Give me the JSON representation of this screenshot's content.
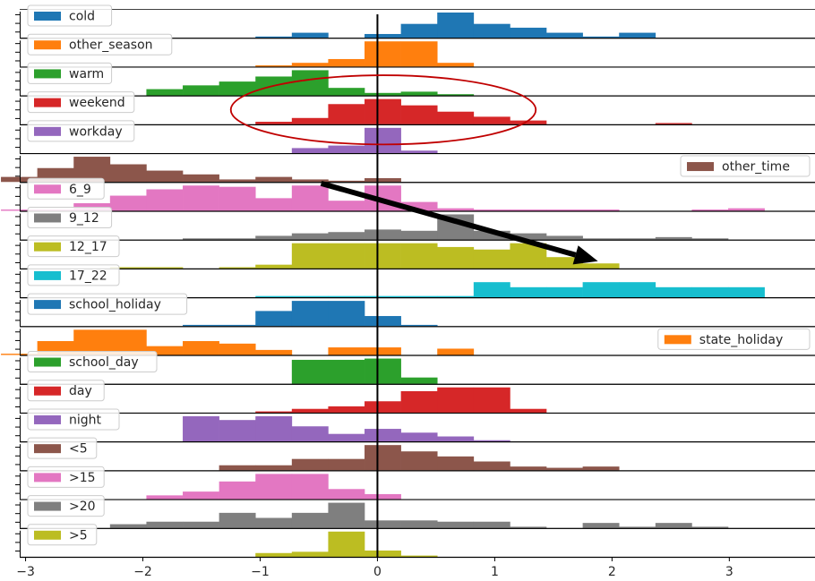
{
  "chart_data": {
    "type": "bar",
    "layout": "stacked-histogram-panels",
    "xlim": [
      -3.05,
      3.7
    ],
    "x_ticks": [
      {
        "value": -3,
        "label": "−3"
      },
      {
        "value": -2,
        "label": "−2"
      },
      {
        "value": -1,
        "label": "−1"
      },
      {
        "value": 0,
        "label": "0"
      },
      {
        "value": 1,
        "label": "1"
      },
      {
        "value": 2,
        "label": "2"
      },
      {
        "value": 3,
        "label": "3"
      }
    ],
    "reference_line_x": 0,
    "bin_edges": [
      -3.21,
      -2.9,
      -2.59,
      -2.28,
      -1.97,
      -1.66,
      -1.35,
      -1.04,
      -0.73,
      -0.42,
      -0.11,
      0.2,
      0.51,
      0.82,
      1.13,
      1.44,
      1.75,
      2.06,
      2.37,
      2.68,
      2.99,
      3.3,
      3.61
    ],
    "series": [
      {
        "name": "cold",
        "color": "#1f77b4",
        "legend": "left",
        "values": [
          0,
          0,
          0,
          0,
          0,
          0,
          0,
          0.05,
          0.2,
          0,
          0.15,
          0.55,
          1.0,
          0.55,
          0.4,
          0.2,
          0.05,
          0.2,
          0,
          0,
          0,
          0
        ]
      },
      {
        "name": "other_season",
        "color": "#ff7f0e",
        "legend": "left",
        "values": [
          0,
          0,
          0,
          0,
          0,
          0,
          0,
          0.05,
          0.15,
          0.3,
          1.0,
          1.0,
          0.15,
          0,
          0,
          0,
          0,
          0,
          0,
          0,
          0,
          0
        ]
      },
      {
        "name": "warm",
        "color": "#2ca02c",
        "legend": "left",
        "values": [
          0,
          0,
          0,
          0,
          0.25,
          0.4,
          0.55,
          0.75,
          1.0,
          0.3,
          0.1,
          0.15,
          0.05,
          0,
          0,
          0,
          0,
          0,
          0,
          0,
          0,
          0
        ]
      },
      {
        "name": "weekend",
        "color": "#d62728",
        "legend": "left",
        "values": [
          0,
          0,
          0,
          0,
          0,
          0,
          0,
          0.1,
          0.25,
          0.8,
          1.0,
          0.75,
          0.5,
          0.3,
          0.15,
          0,
          0,
          0,
          0.05,
          0,
          0,
          0
        ]
      },
      {
        "name": "workday",
        "color": "#9467bd",
        "legend": "left",
        "values": [
          0,
          0,
          0,
          0,
          0,
          0,
          0,
          0,
          0.2,
          0.3,
          1.0,
          0.1,
          0,
          0,
          0,
          0,
          0,
          0,
          0,
          0,
          0,
          0
        ]
      },
      {
        "name": "other_time",
        "color": "#8c564b",
        "legend": "right",
        "values": [
          0.2,
          0.55,
          1.0,
          0.7,
          0.45,
          0.3,
          0.1,
          0.2,
          0.1,
          0.05,
          0.15,
          0,
          0,
          0,
          0,
          0,
          0,
          0,
          0,
          0,
          0,
          0
        ]
      },
      {
        "name": "6_9",
        "color": "#e377c2",
        "legend": "left",
        "values": [
          0.05,
          0.05,
          0.3,
          0.6,
          0.85,
          1.0,
          0.95,
          0.5,
          1.0,
          0.4,
          1.0,
          0.35,
          0.1,
          0.05,
          0.05,
          0.05,
          0.05,
          0,
          0,
          0.05,
          0.1,
          0
        ]
      },
      {
        "name": "9_12",
        "color": "#7f7f7f",
        "legend": "left",
        "values": [
          0,
          0,
          0,
          0,
          0,
          0.05,
          0.05,
          0.15,
          0.25,
          0.3,
          0.4,
          0.35,
          1.0,
          0.35,
          0.25,
          0.15,
          0.05,
          0.05,
          0.1,
          0.05,
          0,
          0
        ]
      },
      {
        "name": "12_17",
        "color": "#bcbd22",
        "legend": "left",
        "values": [
          0,
          0,
          0,
          0.05,
          0.05,
          0,
          0.05,
          0.15,
          1.0,
          1.0,
          1.0,
          1.0,
          0.85,
          0.75,
          1.0,
          0.45,
          0.2,
          0,
          0,
          0,
          0,
          0
        ]
      },
      {
        "name": "17_22",
        "color": "#17becf",
        "legend": "left",
        "values": [
          0,
          0,
          0,
          0,
          0,
          0,
          0,
          0.05,
          0.05,
          0.05,
          0.05,
          0.05,
          0.05,
          0.6,
          0.4,
          0.4,
          0.6,
          0.6,
          0.4,
          0.4,
          0.4,
          0
        ]
      },
      {
        "name": "school_holiday",
        "color": "#1f77b4",
        "legend": "left",
        "values": [
          0,
          0,
          0,
          0,
          0,
          0.05,
          0.05,
          0.6,
          1.0,
          1.0,
          0.4,
          0.05,
          0,
          0,
          0,
          0,
          0,
          0,
          0,
          0,
          0,
          0
        ]
      },
      {
        "name": "state_holiday",
        "color": "#ff7f0e",
        "legend": "right",
        "values": [
          0.05,
          0.55,
          1.0,
          1.0,
          0.35,
          0.55,
          0.45,
          0.2,
          0,
          0.3,
          0.3,
          0,
          0.25,
          0,
          0,
          0,
          0,
          0,
          0,
          0,
          0,
          0
        ]
      },
      {
        "name": "school_day",
        "color": "#2ca02c",
        "legend": "left",
        "values": [
          0,
          0,
          0,
          0,
          0,
          0,
          0,
          0,
          0.95,
          0.95,
          1.0,
          0.25,
          0,
          0,
          0,
          0,
          0,
          0,
          0,
          0,
          0,
          0
        ]
      },
      {
        "name": "day",
        "color": "#d62728",
        "legend": "left",
        "values": [
          0,
          0,
          0,
          0,
          0,
          0,
          0,
          0.05,
          0.15,
          0.25,
          0.45,
          0.85,
          1.0,
          1.0,
          0.15,
          0,
          0,
          0,
          0,
          0,
          0,
          0
        ]
      },
      {
        "name": "night",
        "color": "#9467bd",
        "legend": "left",
        "values": [
          0,
          0,
          0,
          0,
          0,
          1.0,
          0.85,
          1.0,
          0.6,
          0.3,
          0.5,
          0.35,
          0.2,
          0.05,
          0,
          0,
          0,
          0,
          0,
          0,
          0,
          0
        ]
      },
      {
        "name": "<5",
        "color": "#8c564b",
        "legend": "left",
        "values": [
          0,
          0,
          0,
          0,
          0,
          0,
          0.2,
          0.2,
          0.45,
          0.45,
          1.0,
          0.75,
          0.55,
          0.35,
          0.15,
          0.1,
          0.15,
          0,
          0,
          0,
          0,
          0
        ]
      },
      {
        "name": ">15",
        "color": "#e377c2",
        "legend": "left",
        "values": [
          0,
          0,
          0,
          0,
          0.15,
          0.3,
          0.7,
          1.0,
          1.0,
          0.4,
          0.2,
          0,
          0,
          0,
          0,
          0,
          0,
          0,
          0,
          0,
          0,
          0
        ]
      },
      {
        "name": ">20",
        "color": "#7f7f7f",
        "legend": "left",
        "values": [
          0,
          0,
          0,
          0.15,
          0.25,
          0.25,
          0.6,
          0.4,
          0.6,
          1.0,
          0.3,
          0.3,
          0.25,
          0.25,
          0.05,
          0,
          0.2,
          0.05,
          0.2,
          0.05,
          0,
          0
        ]
      },
      {
        "name": ">5",
        "color": "#bcbd22",
        "legend": "left",
        "values": [
          0,
          0,
          0,
          0,
          0,
          0,
          0,
          0.15,
          0.2,
          1.0,
          0.25,
          0.05,
          0,
          0,
          0,
          0,
          0,
          0,
          0,
          0,
          0,
          0
        ]
      }
    ],
    "annotations": [
      {
        "type": "ellipse",
        "color": "#c00000",
        "center": [
          0.05,
          3.5
        ],
        "radii": [
          1.3,
          1.2
        ]
      },
      {
        "type": "arrow",
        "color": "#000000",
        "from": [
          -0.48,
          6.05
        ],
        "to": [
          1.88,
          8.75
        ]
      }
    ],
    "grid": false,
    "title": "",
    "xlabel": "",
    "ylabel": ""
  }
}
